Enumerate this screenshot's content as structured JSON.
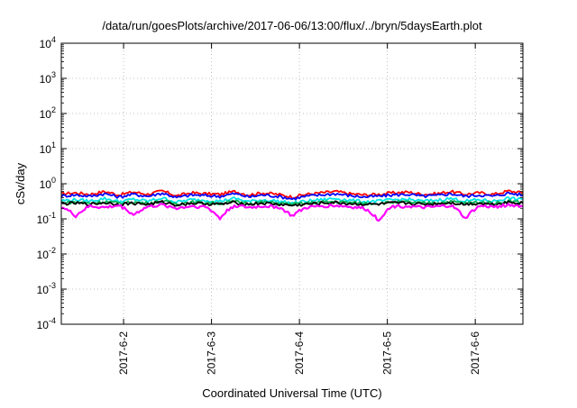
{
  "chart_data": {
    "type": "line",
    "title": "/data/run/goesPlots/archive/2017-06-06/13:00/flux/../bryn/5daysEarth.plot",
    "xlabel": "Coordinated Universal Time (UTC)",
    "ylabel": "cSv/day",
    "y_scale": "log",
    "ylim": [
      0.0001,
      10000
    ],
    "y_ticks": [
      {
        "value": 0.0001,
        "base": "10",
        "exp": "-4"
      },
      {
        "value": 0.001,
        "base": "10",
        "exp": "-3"
      },
      {
        "value": 0.01,
        "base": "10",
        "exp": "-2"
      },
      {
        "value": 0.1,
        "base": "10",
        "exp": "-1"
      },
      {
        "value": 1,
        "base": "10",
        "exp": "0"
      },
      {
        "value": 10,
        "base": "10",
        "exp": "1"
      },
      {
        "value": 100,
        "base": "10",
        "exp": "2"
      },
      {
        "value": 1000,
        "base": "10",
        "exp": "3"
      },
      {
        "value": 10000,
        "base": "10",
        "exp": "4"
      }
    ],
    "xlim": [
      2017.0601,
      2017.0606
    ],
    "x_ticks": [
      "2017-6-2",
      "2017-6-3",
      "2017-6-4",
      "2017-6-5",
      "2017-6-6"
    ],
    "x_range_days": {
      "start": "2017-06-01 07:00",
      "end": "2017-06-06 13:00"
    },
    "grid": true,
    "series": [
      {
        "color": "#ff0000",
        "values": [
          0.52,
          0.55,
          0.5,
          0.6,
          0.48,
          0.58,
          0.5,
          0.62,
          0.45,
          0.55,
          0.52,
          0.5,
          0.6,
          0.48,
          0.55,
          0.5,
          0.42,
          0.5,
          0.55,
          0.6,
          0.52,
          0.48,
          0.5,
          0.55,
          0.58,
          0.5,
          0.52,
          0.6,
          0.5,
          0.55,
          0.5,
          0.62,
          0.55
        ]
      },
      {
        "color": "#0000ff",
        "values": [
          0.45,
          0.48,
          0.44,
          0.52,
          0.42,
          0.5,
          0.44,
          0.54,
          0.4,
          0.48,
          0.46,
          0.44,
          0.52,
          0.42,
          0.48,
          0.44,
          0.37,
          0.44,
          0.48,
          0.52,
          0.46,
          0.42,
          0.44,
          0.48,
          0.5,
          0.44,
          0.46,
          0.52,
          0.44,
          0.48,
          0.44,
          0.54,
          0.48
        ]
      },
      {
        "color": "#00e5e5",
        "values": [
          0.33,
          0.35,
          0.32,
          0.38,
          0.31,
          0.36,
          0.32,
          0.39,
          0.3,
          0.35,
          0.34,
          0.32,
          0.38,
          0.31,
          0.35,
          0.32,
          0.28,
          0.32,
          0.35,
          0.38,
          0.34,
          0.31,
          0.32,
          0.35,
          0.36,
          0.32,
          0.34,
          0.38,
          0.32,
          0.35,
          0.32,
          0.39,
          0.35
        ]
      },
      {
        "color": "#00b050",
        "values": [
          0.29,
          0.3,
          0.28,
          0.31,
          0.28,
          0.3,
          0.28,
          0.32,
          0.27,
          0.3,
          0.29,
          0.28,
          0.31,
          0.28,
          0.3,
          0.28,
          0.26,
          0.28,
          0.3,
          0.31,
          0.29,
          0.28,
          0.28,
          0.3,
          0.3,
          0.28,
          0.29,
          0.31,
          0.28,
          0.3,
          0.28,
          0.32,
          0.3
        ]
      },
      {
        "color": "#000000",
        "values": [
          0.27,
          0.28,
          0.26,
          0.29,
          0.26,
          0.28,
          0.26,
          0.3,
          0.25,
          0.28,
          0.27,
          0.26,
          0.29,
          0.26,
          0.28,
          0.26,
          0.24,
          0.26,
          0.28,
          0.29,
          0.27,
          0.26,
          0.26,
          0.28,
          0.28,
          0.26,
          0.27,
          0.29,
          0.26,
          0.28,
          0.26,
          0.3,
          0.28
        ]
      },
      {
        "color": "#ff00ff",
        "values": [
          0.22,
          0.12,
          0.23,
          0.21,
          0.24,
          0.13,
          0.22,
          0.25,
          0.2,
          0.23,
          0.22,
          0.1,
          0.24,
          0.21,
          0.23,
          0.22,
          0.12,
          0.21,
          0.23,
          0.24,
          0.22,
          0.2,
          0.09,
          0.23,
          0.23,
          0.21,
          0.22,
          0.24,
          0.1,
          0.23,
          0.22,
          0.25,
          0.23
        ]
      }
    ]
  }
}
